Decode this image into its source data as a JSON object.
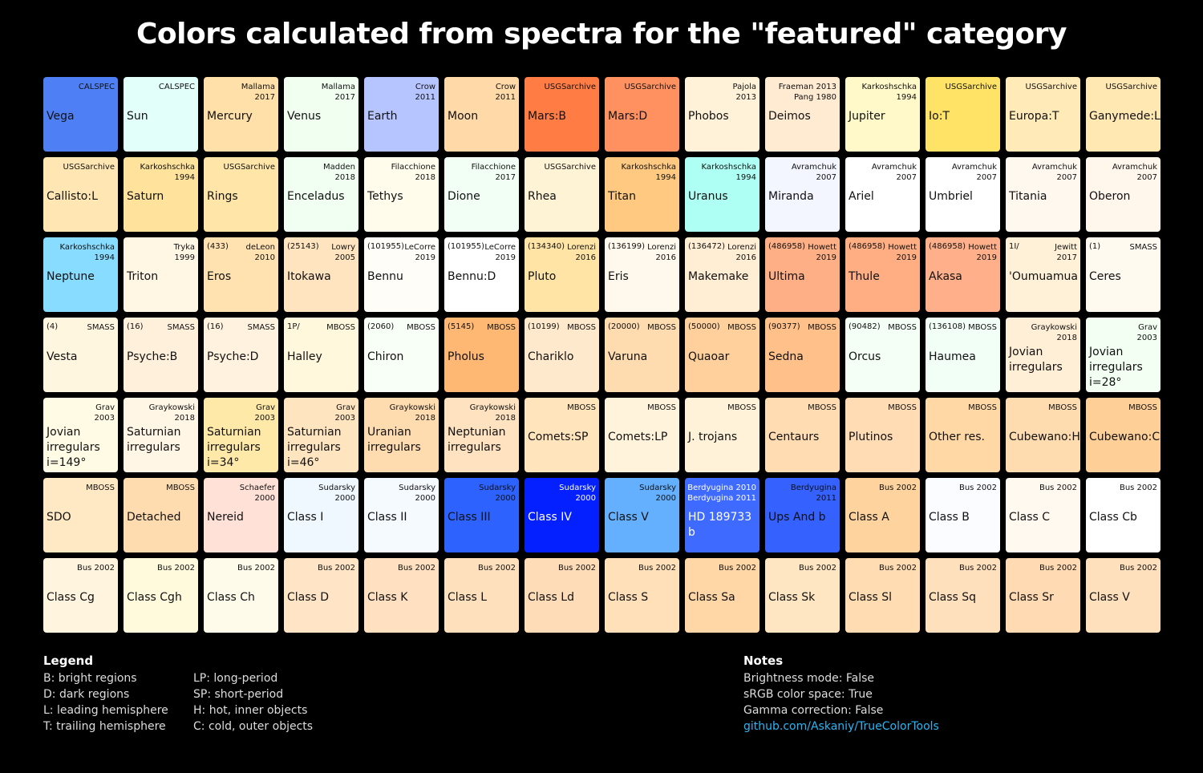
{
  "title": "Colors calculated from spectra for the \"featured\" category",
  "chart_data": {
    "type": "table",
    "columns": 14,
    "cells": [
      {
        "name": "Vega",
        "src": "CALSPEC",
        "color": "#4f7ff5",
        "light": false
      },
      {
        "name": "Sun",
        "src": "CALSPEC",
        "color": "#e3fff9"
      },
      {
        "name": "Mercury",
        "src": "Mallama\n2017",
        "color": "#ffe0a8"
      },
      {
        "name": "Venus",
        "src": "Mallama\n2017",
        "color": "#f0fff0"
      },
      {
        "name": "Earth",
        "src": "Crow\n2011",
        "color": "#b6c4ff"
      },
      {
        "name": "Moon",
        "src": "Crow\n2011",
        "color": "#ffd9a8"
      },
      {
        "name": "Mars:B",
        "src": "USGSarchive",
        "color": "#ff7d44"
      },
      {
        "name": "Mars:D",
        "src": "USGSarchive",
        "color": "#ff9161"
      },
      {
        "name": "Phobos",
        "src": "Pajola\n2013",
        "color": "#fff2d8"
      },
      {
        "name": "Deimos",
        "src": "Fraeman 2013\nPang 1980",
        "color": "#ffead2"
      },
      {
        "name": "Jupiter",
        "src": "Karkoshschka\n1994",
        "color": "#fff8c9"
      },
      {
        "name": "Io:T",
        "src": "USGSarchive",
        "color": "#ffe366"
      },
      {
        "name": "Europa:T",
        "src": "USGSarchive",
        "color": "#ffeab8"
      },
      {
        "name": "Ganymede:L",
        "src": "USGSarchive",
        "color": "#ffe8b2"
      },
      {
        "name": "Callisto:L",
        "src": "USGSarchive",
        "color": "#ffe6b2"
      },
      {
        "name": "Saturn",
        "src": "Karkoshschka\n1994",
        "color": "#ffe39d"
      },
      {
        "name": "Rings",
        "src": "USGSarchive",
        "color": "#ffe6a8"
      },
      {
        "name": "Enceladus",
        "src": "Madden\n2018",
        "color": "#f1fff2"
      },
      {
        "name": "Tethys",
        "src": "Filacchione\n2018",
        "color": "#fffcec"
      },
      {
        "name": "Dione",
        "src": "Filacchione\n2017",
        "color": "#f2fff4"
      },
      {
        "name": "Rhea",
        "src": "USGSarchive",
        "color": "#fff3d6"
      },
      {
        "name": "Titan",
        "src": "Karkoshschka\n1994",
        "color": "#ffc981"
      },
      {
        "name": "Uranus",
        "src": "Karkoshschka\n1994",
        "color": "#aefff4"
      },
      {
        "name": "Miranda",
        "src": "Avramchuk\n2007",
        "color": "#f3f6ff"
      },
      {
        "name": "Ariel",
        "src": "Avramchuk\n2007",
        "color": "#ffffff"
      },
      {
        "name": "Umbriel",
        "src": "Avramchuk\n2007",
        "color": "#ffffff"
      },
      {
        "name": "Titania",
        "src": "Avramchuk\n2007",
        "color": "#fff8ee"
      },
      {
        "name": "Oberon",
        "src": "Avramchuk\n2007",
        "color": "#fff6ec"
      },
      {
        "name": "Neptune",
        "src": "Karkoshschka\n1994",
        "color": "#88dcff"
      },
      {
        "name": "Triton",
        "src": "Tryka\n1999",
        "color": "#fff6e4"
      },
      {
        "name": "Eros",
        "tl": "(433)",
        "src": "deLeon\n2010",
        "color": "#ffe2b0"
      },
      {
        "name": "Itokawa",
        "tl": "(25143)",
        "src": "Lowry\n2005",
        "color": "#ffe4bf"
      },
      {
        "name": "Bennu",
        "tl": "(101955)",
        "src": "LeCorre\n2019",
        "color": "#fffdf8"
      },
      {
        "name": "Bennu:D",
        "tl": "(101955)",
        "src": "LeCorre\n2019",
        "color": "#ffffff"
      },
      {
        "name": "Pluto",
        "tl": "(134340)",
        "src": "Lorenzi\n2016",
        "color": "#ffe4a6"
      },
      {
        "name": "Eris",
        "tl": "(136199)",
        "src": "Lorenzi\n2016",
        "color": "#fff8ec"
      },
      {
        "name": "Makemake",
        "tl": "(136472)",
        "src": "Lorenzi\n2016",
        "color": "#ffedd4"
      },
      {
        "name": "Ultima",
        "tl": "(486958)",
        "src": "Howett\n2019",
        "color": "#ffaf85"
      },
      {
        "name": "Thule",
        "tl": "(486958)",
        "src": "Howett\n2019",
        "color": "#ffae83"
      },
      {
        "name": "Akasa",
        "tl": "(486958)",
        "src": "Howett\n2019",
        "color": "#ffb08a"
      },
      {
        "name": "'Oumuamua",
        "tl": "1I/",
        "src": "Jewitt\n2017",
        "color": "#fff0d8"
      },
      {
        "name": "Ceres",
        "tl": "(1)",
        "src": "SMASS",
        "color": "#fffaf0"
      },
      {
        "name": "Vesta",
        "tl": "(4)",
        "src": "SMASS",
        "color": "#fff6e0"
      },
      {
        "name": "Psyche:B",
        "tl": "(16)",
        "src": "SMASS",
        "color": "#fff0dc"
      },
      {
        "name": "Psyche:D",
        "tl": "(16)",
        "src": "SMASS",
        "color": "#fff2df"
      },
      {
        "name": "Halley",
        "tl": "1P/",
        "src": "MBOSS",
        "color": "#fff8dc"
      },
      {
        "name": "Chiron",
        "tl": "(2060)",
        "src": "MBOSS",
        "color": "#f8fff6"
      },
      {
        "name": "Pholus",
        "tl": "(5145)",
        "src": "MBOSS",
        "color": "#ffb873"
      },
      {
        "name": "Chariklo",
        "tl": "(10199)",
        "src": "MBOSS",
        "color": "#ffe9cc"
      },
      {
        "name": "Varuna",
        "tl": "(20000)",
        "src": "MBOSS",
        "color": "#ffdcb0"
      },
      {
        "name": "Quaoar",
        "tl": "(50000)",
        "src": "MBOSS",
        "color": "#ffd09c"
      },
      {
        "name": "Sedna",
        "tl": "(90377)",
        "src": "MBOSS",
        "color": "#ffc08a"
      },
      {
        "name": "Orcus",
        "tl": "(90482)",
        "src": "MBOSS",
        "color": "#f4fff6"
      },
      {
        "name": "Haumea",
        "tl": "(136108)",
        "src": "MBOSS",
        "color": "#f2fff6"
      },
      {
        "name": "Jovian\nirregulars",
        "src": "Graykowski\n2018",
        "color": "#ffefd6",
        "multi": true
      },
      {
        "name": "Jovian\nirregulars\ni=28°",
        "src": "Grav\n2003",
        "color": "#f3fff2",
        "multi": true
      },
      {
        "name": "Jovian\nirregulars\ni=149°",
        "src": "Grav\n2003",
        "color": "#fffbe4",
        "multi": true
      },
      {
        "name": "Saturnian\nirregulars",
        "src": "Graykowski\n2018",
        "color": "#fff6e6",
        "multi": true
      },
      {
        "name": "Saturnian\nirregulars\ni=34°",
        "src": "Grav\n2003",
        "color": "#ffe9a8",
        "multi": true
      },
      {
        "name": "Saturnian\nirregulars\ni=46°",
        "src": "Grav\n2003",
        "color": "#ffe4c0",
        "multi": true
      },
      {
        "name": "Uranian\nirregulars",
        "src": "Graykowski\n2018",
        "color": "#ffdcb0",
        "multi": true
      },
      {
        "name": "Neptunian\nirregulars",
        "src": "Graykowski\n2018",
        "color": "#ffe2c0",
        "multi": true
      },
      {
        "name": "Comets:SP",
        "src": "MBOSS",
        "color": "#ffe4bc"
      },
      {
        "name": "Comets:LP",
        "src": "MBOSS",
        "color": "#fff3dc"
      },
      {
        "name": "J. trojans",
        "src": "MBOSS",
        "color": "#fff2d8"
      },
      {
        "name": "Centaurs",
        "src": "MBOSS",
        "color": "#ffdcb2"
      },
      {
        "name": "Plutinos",
        "src": "MBOSS",
        "color": "#ffdcb4"
      },
      {
        "name": "Other res.",
        "src": "MBOSS",
        "color": "#ffd8a6"
      },
      {
        "name": "Cubewano:H",
        "src": "MBOSS",
        "color": "#ffdcb0"
      },
      {
        "name": "Cubewano:C",
        "src": "MBOSS",
        "color": "#ffcf98"
      },
      {
        "name": "SDO",
        "src": "MBOSS",
        "color": "#ffe8c4"
      },
      {
        "name": "Detached",
        "src": "MBOSS",
        "color": "#ffdcb0"
      },
      {
        "name": "Nereid",
        "src": "Schaefer\n2000",
        "color": "#ffe1d8"
      },
      {
        "name": "Class I",
        "src": "Sudarsky\n2000",
        "color": "#f0f8ff"
      },
      {
        "name": "Class II",
        "src": "Sudarsky\n2000",
        "color": "#f4faff"
      },
      {
        "name": "Class III",
        "src": "Sudarsky\n2000",
        "color": "#2d62ff",
        "light": false
      },
      {
        "name": "Class IV",
        "src": "Sudarsky\n2000",
        "color": "#0420ff",
        "light": true
      },
      {
        "name": "Class V",
        "src": "Sudarsky\n2000",
        "color": "#64b0ff"
      },
      {
        "name": "HD 189733 b",
        "src": "Berdyugina 2010\nBerdyugina 2011",
        "color": "#3e6aff",
        "light": true
      },
      {
        "name": "Ups And b",
        "src": "Berdyugina\n2011",
        "color": "#3461ff",
        "light": false
      },
      {
        "name": "Class A",
        "src": "Bus 2002",
        "color": "#ffd39e"
      },
      {
        "name": "Class B",
        "src": "Bus 2002",
        "color": "#fafcff"
      },
      {
        "name": "Class C",
        "src": "Bus 2002",
        "color": "#fff9f0"
      },
      {
        "name": "Class Cb",
        "src": "Bus 2002",
        "color": "#ffffff"
      },
      {
        "name": "Class Cg",
        "src": "Bus 2002",
        "color": "#fff4de"
      },
      {
        "name": "Class Cgh",
        "src": "Bus 2002",
        "color": "#fffadc"
      },
      {
        "name": "Class Ch",
        "src": "Bus 2002",
        "color": "#fffbea"
      },
      {
        "name": "Class D",
        "src": "Bus 2002",
        "color": "#ffe5c6"
      },
      {
        "name": "Class K",
        "src": "Bus 2002",
        "color": "#ffe0c0"
      },
      {
        "name": "Class L",
        "src": "Bus 2002",
        "color": "#ffe0bc"
      },
      {
        "name": "Class Ld",
        "src": "Bus 2002",
        "color": "#ffdcb8"
      },
      {
        "name": "Class S",
        "src": "Bus 2002",
        "color": "#ffe0b8"
      },
      {
        "name": "Class Sa",
        "src": "Bus 2002",
        "color": "#ffd6a6"
      },
      {
        "name": "Class Sk",
        "src": "Bus 2002",
        "color": "#ffe6c2"
      },
      {
        "name": "Class Sl",
        "src": "Bus 2002",
        "color": "#ffdcb2"
      },
      {
        "name": "Class Sq",
        "src": "Bus 2002",
        "color": "#ffe0bc"
      },
      {
        "name": "Class Sr",
        "src": "Bus 2002",
        "color": "#ffdab2"
      },
      {
        "name": "Class V",
        "src": "Bus 2002",
        "color": "#ffe0bc"
      }
    ]
  },
  "legend": {
    "header": "Legend",
    "col1": [
      "B: bright regions",
      "D: dark regions",
      "L: leading hemisphere",
      "T: trailing hemisphere"
    ],
    "col2": [
      "LP: long-period",
      "SP: short-period",
      "H: hot, inner objects",
      "C: cold, outer objects"
    ]
  },
  "notes": {
    "header": "Notes",
    "lines": [
      "Brightness mode: False",
      "sRGB color space: True",
      "Gamma correction: False"
    ],
    "link": "github.com/Askaniy/TrueColorTools"
  }
}
